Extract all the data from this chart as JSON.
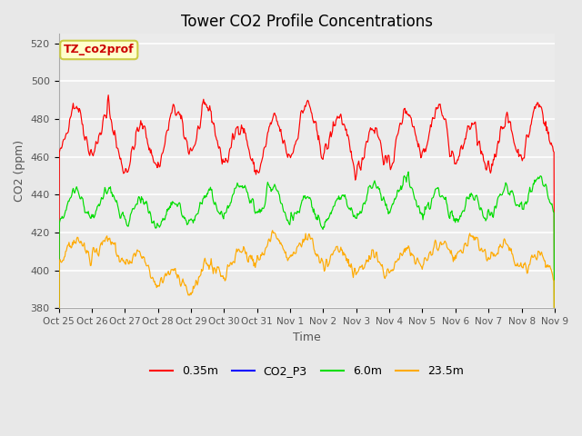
{
  "title": "Tower CO2 Profile Concentrations",
  "xlabel": "Time",
  "ylabel": "CO2 (ppm)",
  "ylim": [
    380,
    525
  ],
  "yticks": [
    380,
    400,
    420,
    440,
    460,
    480,
    500,
    520
  ],
  "annotation_text": "TZ_co2prof",
  "annotation_bg": "#ffffcc",
  "annotation_border": "#cccc44",
  "annotation_text_color": "#cc0000",
  "series_colors": {
    "0.35m": "#ff0000",
    "CO2_P3": "#0000ff",
    "6.0m": "#00dd00",
    "23.5m": "#ffaa00"
  },
  "bg_color": "#e8e8e8",
  "plot_bg": "#ebebeb",
  "grid_color": "#ffffff",
  "n_days": 15,
  "x_tick_labels": [
    "Oct 25",
    "Oct 26",
    "Oct 27",
    "Oct 28",
    "Oct 29",
    "Oct 30",
    "Oct 31",
    "Nov 1",
    "Nov 2",
    "Nov 3",
    "Nov 4",
    "Nov 5",
    "Nov 6",
    "Nov 7",
    "Nov 8",
    "Nov 9"
  ]
}
